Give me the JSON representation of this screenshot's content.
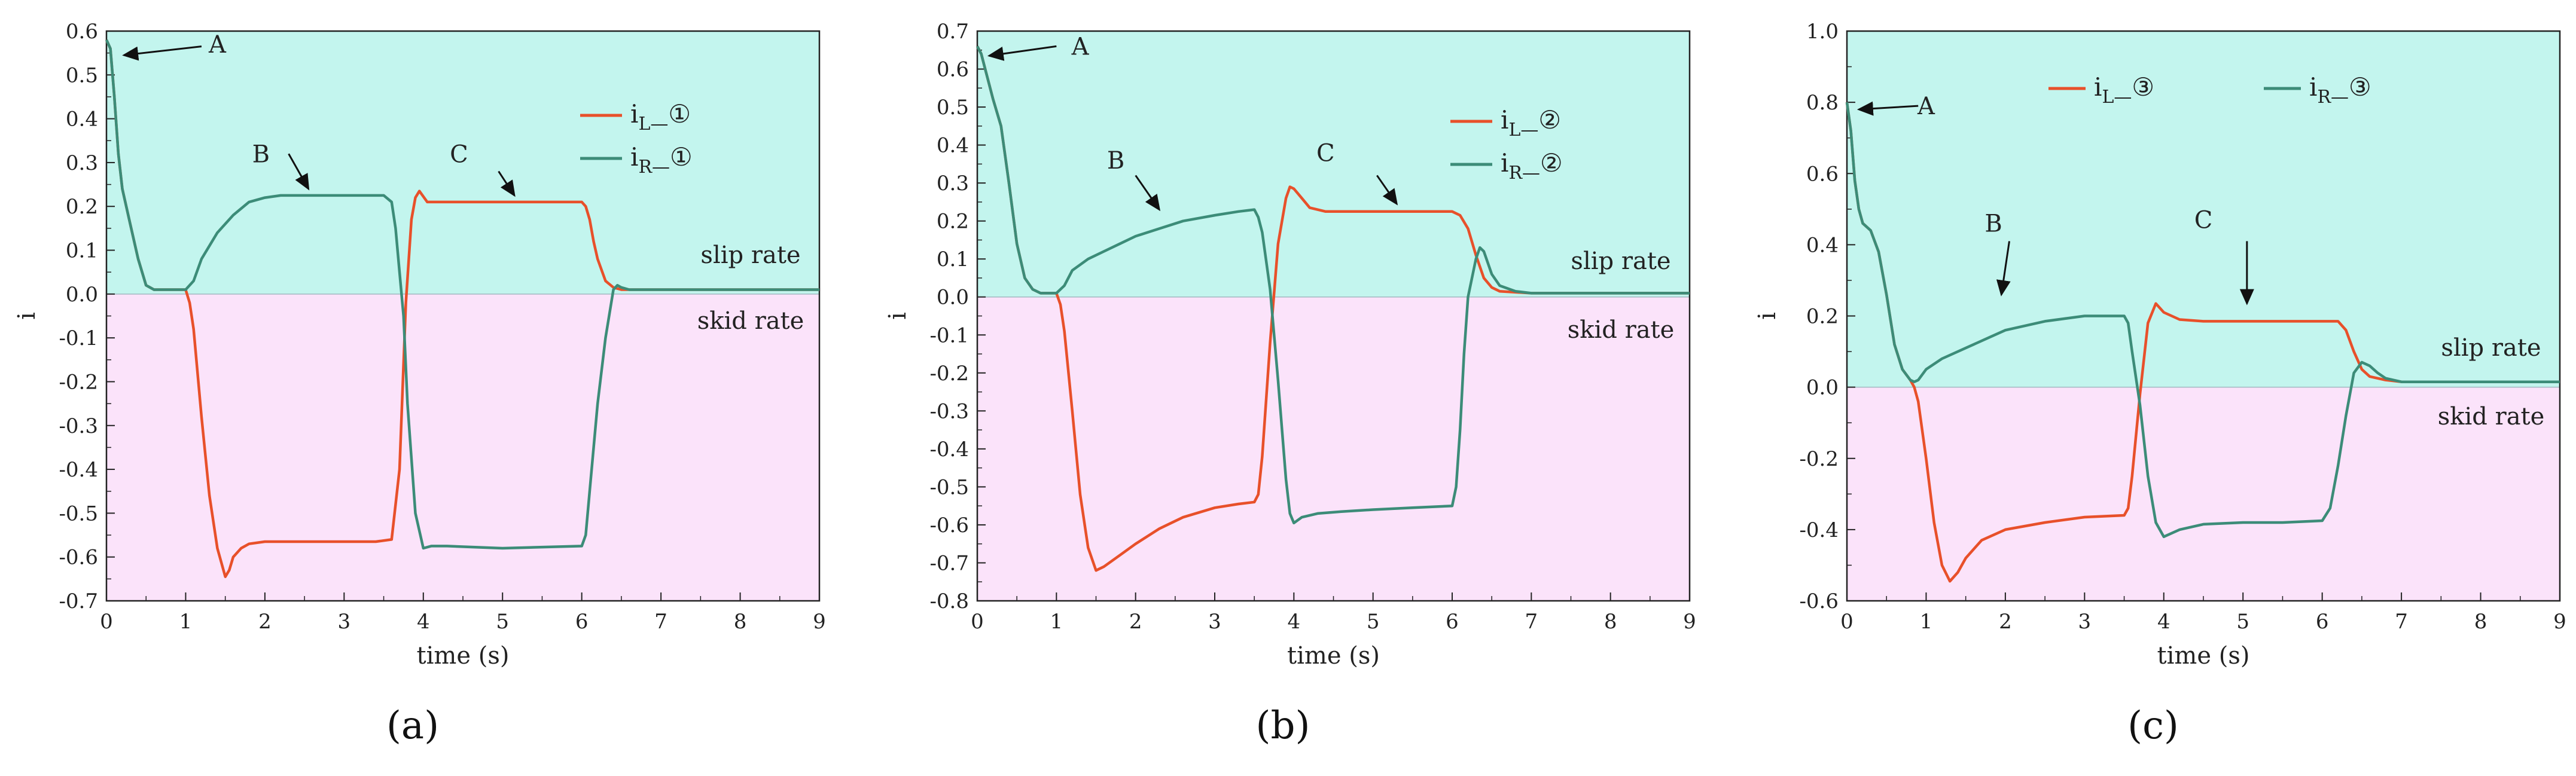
{
  "chart_data": [
    {
      "type": "line",
      "panel_label": "(a)",
      "panel_letter": "a",
      "xlabel": "time (s)",
      "ylabel": "i",
      "xlim": [
        0,
        9
      ],
      "ylim": [
        -0.7,
        0.6
      ],
      "xticks": [
        "0",
        "1",
        "2",
        "3",
        "4",
        "5",
        "6",
        "7",
        "8",
        "9"
      ],
      "yticks": [
        "0.6",
        "0.5",
        "0.4",
        "0.3",
        "0.2",
        "0.1",
        "0.0",
        "-0.1",
        "-0.2",
        "-0.3",
        "-0.4",
        "-0.5",
        "-0.6",
        "-0.7"
      ],
      "ytick_values": [
        0.6,
        0.5,
        0.4,
        0.3,
        0.2,
        0.1,
        0,
        -0.1,
        -0.2,
        -0.3,
        -0.4,
        -0.5,
        -0.6,
        -0.7
      ],
      "regions": {
        "upper": "slip rate",
        "lower": "skid rate"
      },
      "legend": [
        {
          "main": "i",
          "sub": "L—",
          "circle": "①",
          "color": "#e8502a"
        },
        {
          "main": "i",
          "sub": "R—",
          "circle": "①",
          "color": "#3c8c78"
        }
      ],
      "annotations": [
        {
          "label": "A",
          "label_at": [
            1.4,
            0.57
          ],
          "from": [
            1.2,
            0.565
          ],
          "to": [
            0.22,
            0.545
          ]
        },
        {
          "label": "B",
          "label_at": [
            1.95,
            0.32
          ],
          "from": [
            2.3,
            0.32
          ],
          "to": [
            2.55,
            0.24
          ]
        },
        {
          "label": "C",
          "label_at": [
            4.45,
            0.32
          ],
          "from": [
            4.95,
            0.28
          ],
          "to": [
            5.15,
            0.225
          ]
        }
      ],
      "series": [
        {
          "name": "iL-①",
          "color": "#e8502a",
          "x": [
            0,
            0.05,
            0.1,
            0.15,
            0.2,
            0.3,
            0.4,
            0.5,
            0.6,
            0.8,
            1.0,
            1.05,
            1.1,
            1.2,
            1.3,
            1.4,
            1.5,
            1.55,
            1.6,
            1.7,
            1.8,
            2.0,
            2.5,
            3.0,
            3.4,
            3.6,
            3.7,
            3.78,
            3.85,
            3.9,
            3.95,
            4.05,
            4.2,
            4.5,
            5.0,
            5.5,
            6.0,
            6.05,
            6.1,
            6.15,
            6.2,
            6.3,
            6.4,
            6.5,
            7,
            8,
            9
          ],
          "y": [
            0.58,
            0.56,
            0.45,
            0.32,
            0.24,
            0.16,
            0.08,
            0.02,
            0.01,
            0.01,
            0.01,
            -0.02,
            -0.08,
            -0.28,
            -0.46,
            -0.58,
            -0.645,
            -0.63,
            -0.6,
            -0.58,
            -0.57,
            -0.565,
            -0.565,
            -0.565,
            -0.565,
            -0.56,
            -0.4,
            -0.02,
            0.17,
            0.22,
            0.235,
            0.21,
            0.21,
            0.21,
            0.21,
            0.21,
            0.21,
            0.2,
            0.17,
            0.12,
            0.08,
            0.03,
            0.015,
            0.01,
            0.01,
            0.01,
            0.01
          ]
        },
        {
          "name": "iR-①",
          "color": "#3c8c78",
          "x": [
            0,
            0.05,
            0.1,
            0.15,
            0.2,
            0.3,
            0.4,
            0.5,
            0.6,
            0.8,
            1.0,
            1.1,
            1.2,
            1.4,
            1.6,
            1.8,
            2.0,
            2.2,
            2.5,
            3.0,
            3.5,
            3.6,
            3.65,
            3.7,
            3.75,
            3.8,
            3.9,
            4.0,
            4.1,
            4.3,
            5.0,
            6.0,
            6.05,
            6.1,
            6.2,
            6.3,
            6.4,
            6.45,
            6.5,
            6.6,
            7,
            8,
            9
          ],
          "y": [
            0.58,
            0.56,
            0.45,
            0.32,
            0.24,
            0.16,
            0.08,
            0.02,
            0.01,
            0.01,
            0.01,
            0.03,
            0.08,
            0.14,
            0.18,
            0.21,
            0.22,
            0.225,
            0.225,
            0.225,
            0.225,
            0.21,
            0.15,
            0.05,
            -0.05,
            -0.25,
            -0.5,
            -0.58,
            -0.575,
            -0.575,
            -0.58,
            -0.575,
            -0.55,
            -0.45,
            -0.25,
            -0.1,
            0.01,
            0.02,
            0.015,
            0.01,
            0.01,
            0.01,
            0.01
          ]
        }
      ]
    },
    {
      "type": "line",
      "panel_label": "(b)",
      "panel_letter": "b",
      "xlabel": "time (s)",
      "ylabel": "i",
      "xlim": [
        0,
        9
      ],
      "ylim": [
        -0.8,
        0.7
      ],
      "xticks": [
        "0",
        "1",
        "2",
        "3",
        "4",
        "5",
        "6",
        "7",
        "8",
        "9"
      ],
      "yticks": [
        "0.7",
        "0.6",
        "0.5",
        "0.4",
        "0.3",
        "0.2",
        "0.1",
        "0.0",
        "-0.1",
        "-0.2",
        "-0.3",
        "-0.4",
        "-0.5",
        "-0.6",
        "-0.7",
        "-0.8"
      ],
      "ytick_values": [
        0.7,
        0.6,
        0.5,
        0.4,
        0.3,
        0.2,
        0.1,
        0,
        -0.1,
        -0.2,
        -0.3,
        -0.4,
        -0.5,
        -0.6,
        -0.7,
        -0.8
      ],
      "regions": {
        "upper": "slip rate",
        "lower": "skid rate"
      },
      "legend": [
        {
          "main": "i",
          "sub": "L—",
          "circle": "②",
          "color": "#e8502a"
        },
        {
          "main": "i",
          "sub": "R—",
          "circle": "②",
          "color": "#3c8c78"
        }
      ],
      "annotations": [
        {
          "label": "A",
          "label_at": [
            1.3,
            0.66
          ],
          "from": [
            1.0,
            0.66
          ],
          "to": [
            0.15,
            0.635
          ]
        },
        {
          "label": "B",
          "label_at": [
            1.75,
            0.36
          ],
          "from": [
            2.0,
            0.32
          ],
          "to": [
            2.3,
            0.23
          ]
        },
        {
          "label": "C",
          "label_at": [
            4.4,
            0.38
          ],
          "from": [
            5.05,
            0.32
          ],
          "to": [
            5.3,
            0.245
          ]
        }
      ],
      "series": [
        {
          "name": "iL-②",
          "color": "#e8502a",
          "x": [
            0,
            0.05,
            0.1,
            0.2,
            0.3,
            0.4,
            0.5,
            0.6,
            0.7,
            0.8,
            1.0,
            1.05,
            1.1,
            1.2,
            1.3,
            1.4,
            1.5,
            1.6,
            1.8,
            2.0,
            2.3,
            2.6,
            3.0,
            3.3,
            3.5,
            3.55,
            3.6,
            3.7,
            3.8,
            3.9,
            3.95,
            4.0,
            4.1,
            4.2,
            4.4,
            5.0,
            5.5,
            6.0,
            6.1,
            6.2,
            6.3,
            6.4,
            6.5,
            6.6,
            7,
            8,
            9
          ],
          "y": [
            0.66,
            0.64,
            0.6,
            0.52,
            0.45,
            0.3,
            0.14,
            0.05,
            0.02,
            0.01,
            0.01,
            -0.02,
            -0.09,
            -0.3,
            -0.52,
            -0.66,
            -0.72,
            -0.71,
            -0.68,
            -0.65,
            -0.61,
            -0.58,
            -0.555,
            -0.545,
            -0.54,
            -0.52,
            -0.42,
            -0.12,
            0.14,
            0.26,
            0.29,
            0.285,
            0.26,
            0.235,
            0.225,
            0.225,
            0.225,
            0.225,
            0.215,
            0.18,
            0.11,
            0.05,
            0.025,
            0.015,
            0.01,
            0.01,
            0.01
          ]
        },
        {
          "name": "iR-②",
          "color": "#3c8c78",
          "x": [
            0,
            0.05,
            0.1,
            0.2,
            0.3,
            0.4,
            0.5,
            0.6,
            0.7,
            0.8,
            1.0,
            1.1,
            1.2,
            1.4,
            1.6,
            1.8,
            2.0,
            2.3,
            2.6,
            3.0,
            3.3,
            3.5,
            3.55,
            3.6,
            3.7,
            3.8,
            3.9,
            3.95,
            4.0,
            4.1,
            4.3,
            4.6,
            5.0,
            5.5,
            6.0,
            6.05,
            6.1,
            6.15,
            6.2,
            6.3,
            6.35,
            6.4,
            6.5,
            6.6,
            6.8,
            7,
            8,
            9
          ],
          "y": [
            0.66,
            0.64,
            0.6,
            0.52,
            0.45,
            0.3,
            0.14,
            0.05,
            0.02,
            0.01,
            0.01,
            0.03,
            0.07,
            0.1,
            0.12,
            0.14,
            0.16,
            0.18,
            0.2,
            0.215,
            0.225,
            0.23,
            0.21,
            0.17,
            0.02,
            -0.22,
            -0.48,
            -0.57,
            -0.595,
            -0.58,
            -0.57,
            -0.565,
            -0.56,
            -0.555,
            -0.55,
            -0.5,
            -0.35,
            -0.15,
            0.0,
            0.1,
            0.13,
            0.12,
            0.06,
            0.03,
            0.015,
            0.01,
            0.01,
            0.01
          ]
        }
      ]
    },
    {
      "type": "line",
      "panel_label": "(c)",
      "panel_letter": "c",
      "xlabel": "time (s)",
      "ylabel": "i",
      "xlim": [
        0,
        9
      ],
      "ylim": [
        -0.6,
        1.0
      ],
      "xticks": [
        "0",
        "1",
        "2",
        "3",
        "4",
        "5",
        "6",
        "7",
        "8",
        "9"
      ],
      "yticks": [
        "1.0",
        "0.8",
        "0.6",
        "0.4",
        "0.2",
        "0.0",
        "-0.2",
        "-0.4",
        "-0.6"
      ],
      "ytick_values": [
        1.0,
        0.8,
        0.6,
        0.4,
        0.2,
        0,
        -0.2,
        -0.4,
        -0.6
      ],
      "regions": {
        "upper": "slip rate",
        "lower": "skid rate"
      },
      "legend": [
        {
          "main": "i",
          "sub": "L—",
          "circle": "③",
          "color": "#e8502a"
        },
        {
          "main": "i",
          "sub": "R—",
          "circle": "③",
          "color": "#3c8c78"
        }
      ],
      "annotations": [
        {
          "label": "A",
          "label_at": [
            1.0,
            0.79
          ],
          "from": [
            0.9,
            0.79
          ],
          "to": [
            0.15,
            0.78
          ]
        },
        {
          "label": "B",
          "label_at": [
            1.85,
            0.46
          ],
          "from": [
            2.05,
            0.41
          ],
          "to": [
            1.95,
            0.26
          ]
        },
        {
          "label": "C",
          "label_at": [
            4.5,
            0.47
          ],
          "from": [
            5.05,
            0.41
          ],
          "to": [
            5.05,
            0.235
          ]
        }
      ],
      "series": [
        {
          "name": "iL-③",
          "color": "#e8502a",
          "x": [
            0,
            0.05,
            0.1,
            0.15,
            0.2,
            0.3,
            0.4,
            0.5,
            0.6,
            0.7,
            0.8,
            0.85,
            0.9,
            1.0,
            1.1,
            1.2,
            1.3,
            1.4,
            1.5,
            1.7,
            2.0,
            2.5,
            3.0,
            3.5,
            3.55,
            3.6,
            3.7,
            3.8,
            3.9,
            4.0,
            4.2,
            4.5,
            5.0,
            5.5,
            6.0,
            6.2,
            6.3,
            6.4,
            6.5,
            6.6,
            6.8,
            7,
            8,
            9
          ],
          "y": [
            0.8,
            0.72,
            0.58,
            0.5,
            0.46,
            0.44,
            0.38,
            0.26,
            0.12,
            0.05,
            0.02,
            0.0,
            -0.04,
            -0.2,
            -0.38,
            -0.5,
            -0.545,
            -0.52,
            -0.48,
            -0.43,
            -0.4,
            -0.38,
            -0.365,
            -0.36,
            -0.34,
            -0.25,
            -0.02,
            0.18,
            0.235,
            0.21,
            0.19,
            0.185,
            0.185,
            0.185,
            0.185,
            0.185,
            0.16,
            0.1,
            0.05,
            0.03,
            0.02,
            0.015,
            0.015,
            0.015
          ]
        },
        {
          "name": "iR-③",
          "color": "#3c8c78",
          "x": [
            0,
            0.05,
            0.1,
            0.15,
            0.2,
            0.3,
            0.4,
            0.5,
            0.6,
            0.7,
            0.8,
            0.85,
            0.9,
            1.0,
            1.2,
            1.5,
            1.8,
            2.0,
            2.5,
            3.0,
            3.5,
            3.55,
            3.6,
            3.7,
            3.8,
            3.9,
            4.0,
            4.2,
            4.5,
            5.0,
            5.5,
            6.0,
            6.1,
            6.2,
            6.3,
            6.4,
            6.5,
            6.6,
            6.7,
            6.8,
            7,
            8,
            9
          ],
          "y": [
            0.8,
            0.72,
            0.58,
            0.5,
            0.46,
            0.44,
            0.38,
            0.26,
            0.12,
            0.05,
            0.02,
            0.015,
            0.02,
            0.05,
            0.08,
            0.11,
            0.14,
            0.16,
            0.185,
            0.2,
            0.2,
            0.18,
            0.1,
            -0.05,
            -0.25,
            -0.38,
            -0.42,
            -0.4,
            -0.385,
            -0.38,
            -0.38,
            -0.375,
            -0.34,
            -0.22,
            -0.08,
            0.04,
            0.07,
            0.06,
            0.04,
            0.025,
            0.015,
            0.015,
            0.015
          ]
        }
      ]
    }
  ]
}
